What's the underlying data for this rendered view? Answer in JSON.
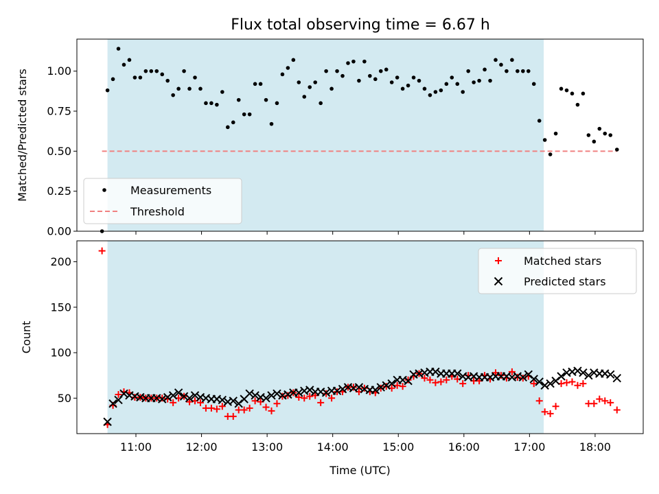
{
  "figure": {
    "title": "Flux total observing time = 6.67 h",
    "xlabel": "Time (UTC)",
    "x_ticks": [
      "11:00",
      "12:00",
      "13:00",
      "14:00",
      "15:00",
      "16:00",
      "17:00",
      "18:00"
    ]
  },
  "colors": {
    "shade": "#d3eaf1",
    "measurements": "#000000",
    "threshold": "#f08080",
    "matched": "#ff0000",
    "predicted": "#000000"
  },
  "chart_data": [
    {
      "type": "scatter",
      "ylabel": "Matched/Predicted stars",
      "xlim": [
        "10:06",
        "18:44"
      ],
      "ylim": [
        0,
        1.2
      ],
      "y_ticks": [
        "0.00",
        "0.25",
        "0.50",
        "0.75",
        "1.00"
      ],
      "shaded_span": [
        "10:34",
        "17:13"
      ],
      "legend_position": "lower-left",
      "threshold": {
        "name": "Threshold",
        "y": 0.5,
        "x_range": [
          "10:29",
          "18:20"
        ]
      },
      "series": [
        {
          "name": "Measurements",
          "x": [
            "10:29",
            "10:34",
            "10:39",
            "10:44",
            "10:49",
            "10:54",
            "10:59",
            "11:04",
            "11:09",
            "11:14",
            "11:19",
            "11:24",
            "11:29",
            "11:34",
            "11:39",
            "11:44",
            "11:49",
            "11:54",
            "11:59",
            "12:04",
            "12:09",
            "12:14",
            "12:19",
            "12:24",
            "12:29",
            "12:34",
            "12:39",
            "12:44",
            "12:49",
            "12:54",
            "12:59",
            "13:04",
            "13:09",
            "13:14",
            "13:19",
            "13:24",
            "13:29",
            "13:34",
            "13:39",
            "13:44",
            "13:49",
            "13:54",
            "13:59",
            "14:04",
            "14:09",
            "14:14",
            "14:19",
            "14:24",
            "14:29",
            "14:34",
            "14:39",
            "14:44",
            "14:49",
            "14:54",
            "14:59",
            "15:04",
            "15:09",
            "15:14",
            "15:19",
            "15:24",
            "15:29",
            "15:34",
            "15:39",
            "15:44",
            "15:49",
            "15:54",
            "15:59",
            "16:04",
            "16:09",
            "16:14",
            "16:19",
            "16:24",
            "16:29",
            "16:34",
            "16:39",
            "16:44",
            "16:49",
            "16:54",
            "16:59",
            "17:04",
            "17:09",
            "17:14",
            "17:19",
            "17:24",
            "17:29",
            "17:34",
            "17:39",
            "17:44",
            "17:49",
            "17:54",
            "17:59",
            "18:04",
            "18:09",
            "18:14",
            "18:20"
          ],
          "y": [
            0.0,
            0.88,
            0.95,
            1.14,
            1.04,
            1.07,
            0.96,
            0.96,
            1.0,
            1.0,
            1.0,
            0.98,
            0.94,
            0.85,
            0.89,
            1.0,
            0.89,
            0.96,
            0.89,
            0.8,
            0.8,
            0.79,
            0.87,
            0.65,
            0.68,
            0.82,
            0.73,
            0.73,
            0.92,
            0.92,
            0.82,
            0.67,
            0.8,
            0.98,
            1.02,
            1.07,
            0.93,
            0.84,
            0.9,
            0.93,
            0.8,
            1.0,
            0.89,
            1.0,
            0.97,
            1.05,
            1.06,
            0.94,
            1.06,
            0.97,
            0.95,
            1.0,
            1.01,
            0.93,
            0.96,
            0.89,
            0.91,
            0.96,
            0.94,
            0.89,
            0.85,
            0.87,
            0.88,
            0.92,
            0.96,
            0.92,
            0.87,
            1.0,
            0.93,
            0.94,
            1.01,
            0.94,
            1.07,
            1.04,
            1.0,
            1.07,
            1.0,
            1.0,
            1.0,
            0.92,
            0.69,
            0.57,
            0.48,
            0.61,
            0.89,
            0.88,
            0.86,
            0.79,
            0.86,
            0.6,
            0.56,
            0.64,
            0.61,
            0.6,
            0.51
          ]
        }
      ]
    },
    {
      "type": "scatter",
      "ylabel": "Count",
      "xlim": [
        "10:06",
        "18:44"
      ],
      "ylim": [
        11,
        223
      ],
      "y_ticks": [
        "50",
        "100",
        "150",
        "200"
      ],
      "shaded_span": [
        "10:34",
        "17:13"
      ],
      "legend_position": "upper-right",
      "series": [
        {
          "name": "Matched stars",
          "marker": "+",
          "x": [
            "10:29",
            "10:34",
            "10:39",
            "10:44",
            "10:49",
            "10:54",
            "10:59",
            "11:04",
            "11:09",
            "11:14",
            "11:19",
            "11:24",
            "11:29",
            "11:34",
            "11:39",
            "11:44",
            "11:49",
            "11:54",
            "11:59",
            "12:04",
            "12:09",
            "12:14",
            "12:19",
            "12:24",
            "12:29",
            "12:34",
            "12:39",
            "12:44",
            "12:49",
            "12:54",
            "12:59",
            "13:04",
            "13:09",
            "13:14",
            "13:19",
            "13:24",
            "13:29",
            "13:34",
            "13:39",
            "13:44",
            "13:49",
            "13:54",
            "13:59",
            "14:04",
            "14:09",
            "14:14",
            "14:19",
            "14:24",
            "14:29",
            "14:34",
            "14:39",
            "14:44",
            "14:49",
            "14:54",
            "14:59",
            "15:04",
            "15:09",
            "15:14",
            "15:19",
            "15:24",
            "15:29",
            "15:34",
            "15:39",
            "15:44",
            "15:49",
            "15:54",
            "15:59",
            "16:04",
            "16:09",
            "16:14",
            "16:19",
            "16:24",
            "16:29",
            "16:34",
            "16:39",
            "16:44",
            "16:49",
            "16:54",
            "16:59",
            "17:04",
            "17:09",
            "17:14",
            "17:19",
            "17:24",
            "17:29",
            "17:34",
            "17:39",
            "17:44",
            "17:49",
            "17:54",
            "17:59",
            "18:04",
            "18:09",
            "18:14",
            "18:20"
          ],
          "y": [
            212,
            21,
            42,
            54,
            57,
            56,
            51,
            51,
            50,
            50,
            50,
            50,
            49,
            45,
            50,
            52,
            46,
            47,
            45,
            39,
            39,
            38,
            41,
            30,
            30,
            37,
            37,
            39,
            47,
            46,
            40,
            36,
            44,
            52,
            53,
            56,
            51,
            50,
            52,
            53,
            45,
            55,
            50,
            57,
            57,
            62,
            62,
            57,
            61,
            57,
            56,
            61,
            63,
            61,
            64,
            63,
            70,
            74,
            77,
            72,
            70,
            67,
            68,
            70,
            74,
            71,
            66,
            75,
            69,
            69,
            75,
            71,
            78,
            75,
            72,
            79,
            73,
            72,
            74,
            66,
            47,
            35,
            33,
            41,
            66,
            67,
            68,
            64,
            66,
            44,
            44,
            49,
            47,
            45,
            37
          ]
        },
        {
          "name": "Predicted stars",
          "marker": "x",
          "x": [
            "10:34",
            "10:39",
            "10:44",
            "10:49",
            "10:54",
            "10:59",
            "11:04",
            "11:09",
            "11:14",
            "11:19",
            "11:24",
            "11:29",
            "11:34",
            "11:39",
            "11:44",
            "11:49",
            "11:54",
            "11:59",
            "12:04",
            "12:09",
            "12:14",
            "12:19",
            "12:24",
            "12:29",
            "12:34",
            "12:39",
            "12:44",
            "12:49",
            "12:54",
            "12:59",
            "13:04",
            "13:09",
            "13:14",
            "13:19",
            "13:24",
            "13:29",
            "13:34",
            "13:39",
            "13:44",
            "13:49",
            "13:54",
            "13:59",
            "14:04",
            "14:09",
            "14:14",
            "14:19",
            "14:24",
            "14:29",
            "14:34",
            "14:39",
            "14:44",
            "14:49",
            "14:54",
            "14:59",
            "15:04",
            "15:09",
            "15:14",
            "15:19",
            "15:24",
            "15:29",
            "15:34",
            "15:39",
            "15:44",
            "15:49",
            "15:54",
            "15:59",
            "16:04",
            "16:09",
            "16:14",
            "16:19",
            "16:24",
            "16:29",
            "16:34",
            "16:39",
            "16:44",
            "16:49",
            "16:54",
            "16:59",
            "17:04",
            "17:09",
            "17:14",
            "17:19",
            "17:24",
            "17:29",
            "17:34",
            "17:39",
            "17:44",
            "17:49",
            "17:54",
            "17:59",
            "18:04",
            "18:09",
            "18:14",
            "18:20"
          ],
          "y": [
            24,
            44,
            48,
            55,
            53,
            52,
            51,
            50,
            50,
            50,
            49,
            51,
            53,
            56,
            52,
            50,
            53,
            51,
            50,
            49,
            49,
            48,
            46,
            47,
            44,
            49,
            55,
            53,
            51,
            50,
            53,
            55,
            53,
            54,
            56,
            56,
            58,
            59,
            57,
            57,
            56,
            58,
            58,
            60,
            62,
            61,
            62,
            60,
            59,
            59,
            62,
            64,
            66,
            70,
            70,
            69,
            76,
            77,
            78,
            79,
            79,
            77,
            77,
            77,
            77,
            74,
            73,
            74,
            73,
            73,
            73,
            74,
            74,
            74,
            73,
            74,
            73,
            76,
            71,
            68,
            64,
            66,
            69,
            74,
            78,
            79,
            80,
            78,
            75,
            78,
            77,
            77,
            76,
            72
          ]
        }
      ]
    }
  ]
}
